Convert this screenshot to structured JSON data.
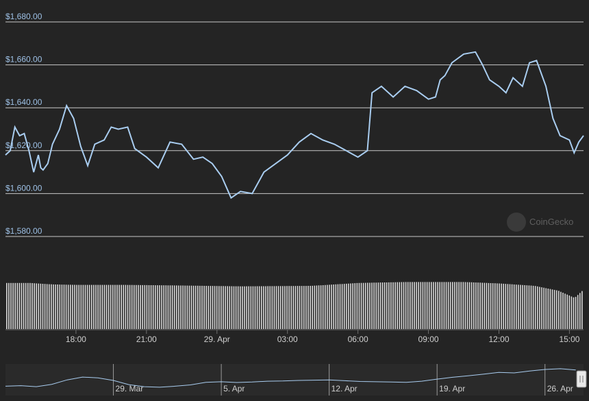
{
  "watermark": "CoinGecko",
  "colors": {
    "background": "#242424",
    "line": "#a9cdf0",
    "grid": "#c8c8c8",
    "volume": "#d9d9d9",
    "navigator_line": "#a9cdf0"
  },
  "chart_data": {
    "type": "line",
    "y_axis": {
      "min": 1580,
      "max": 1680,
      "ticks": [
        "$1,680.00",
        "$1,660.00",
        "$1,640.00",
        "$1,620.00",
        "$1,600.00",
        "$1,580.00"
      ],
      "tick_values": [
        1680,
        1660,
        1640,
        1620,
        1600,
        1580
      ]
    },
    "x_axis": {
      "ticks": [
        "18:00",
        "21:00",
        "29. Apr",
        "03:00",
        "06:00",
        "09:00",
        "12:00",
        "15:00"
      ],
      "tick_hours": [
        3,
        6,
        9,
        12,
        15,
        18,
        21,
        24
      ],
      "range_hours": [
        0,
        24.6
      ]
    },
    "price": {
      "x_hours": [
        0.0,
        0.2,
        0.4,
        0.6,
        0.8,
        1.0,
        1.2,
        1.4,
        1.5,
        1.6,
        1.8,
        2.0,
        2.3,
        2.6,
        2.9,
        3.2,
        3.5,
        3.8,
        4.2,
        4.5,
        4.8,
        5.2,
        5.5,
        6.0,
        6.5,
        7.0,
        7.5,
        8.0,
        8.4,
        8.8,
        9.2,
        9.6,
        10.0,
        10.5,
        11.0,
        11.5,
        12.0,
        12.5,
        13.0,
        13.5,
        14.0,
        14.5,
        15.0,
        15.4,
        15.6,
        16.0,
        16.5,
        17.0,
        17.5,
        18.0,
        18.3,
        18.5,
        18.7,
        19.0,
        19.5,
        20.0,
        20.3,
        20.6,
        21.0,
        21.3,
        21.6,
        22.0,
        22.3,
        22.6,
        23.0,
        23.3,
        23.6,
        24.0,
        24.2,
        24.4,
        24.6
      ],
      "values": [
        1618,
        1620,
        1631,
        1627,
        1628,
        1620,
        1610,
        1618,
        1612,
        1611,
        1614,
        1623,
        1630,
        1641,
        1635,
        1622,
        1613,
        1623,
        1625,
        1631,
        1630,
        1631,
        1621,
        1617,
        1612,
        1624,
        1623,
        1616,
        1617,
        1614,
        1608,
        1598,
        1601,
        1600,
        1610,
        1614,
        1618,
        1624,
        1628,
        1625,
        1623,
        1620,
        1617,
        1620,
        1647,
        1650,
        1645,
        1650,
        1648,
        1644,
        1645,
        1653,
        1655,
        1661,
        1665,
        1666,
        1660,
        1653,
        1650,
        1647,
        1654,
        1650,
        1661,
        1662,
        1650,
        1635,
        1627,
        1625,
        1619,
        1624,
        1627
      ]
    },
    "volume_series": [
      {
        "x": 0.0,
        "v": 0.96
      },
      {
        "x": 1.0,
        "v": 0.96
      },
      {
        "x": 2.0,
        "v": 0.93
      },
      {
        "x": 3.0,
        "v": 0.92
      },
      {
        "x": 5.0,
        "v": 0.92
      },
      {
        "x": 7.0,
        "v": 0.91
      },
      {
        "x": 10.0,
        "v": 0.89
      },
      {
        "x": 13.0,
        "v": 0.9
      },
      {
        "x": 15.0,
        "v": 0.96
      },
      {
        "x": 17.0,
        "v": 0.98
      },
      {
        "x": 19.5,
        "v": 0.98
      },
      {
        "x": 21.0,
        "v": 0.95
      },
      {
        "x": 22.5,
        "v": 0.9
      },
      {
        "x": 23.5,
        "v": 0.8
      },
      {
        "x": 24.2,
        "v": 0.65
      },
      {
        "x": 24.6,
        "v": 0.83
      }
    ],
    "navigator": {
      "ticks": [
        "29. Mar",
        "5. Apr",
        "12. Apr",
        "19. Apr",
        "26. Apr"
      ],
      "tick_days": [
        7,
        14,
        21,
        28,
        35
      ],
      "range_days": [
        0,
        37.5
      ],
      "values": [
        0.28,
        0.3,
        0.26,
        0.35,
        0.52,
        0.63,
        0.6,
        0.5,
        0.34,
        0.26,
        0.24,
        0.28,
        0.33,
        0.43,
        0.45,
        0.42,
        0.44,
        0.47,
        0.48,
        0.5,
        0.51,
        0.52,
        0.49,
        0.46,
        0.45,
        0.44,
        0.43,
        0.47,
        0.55,
        0.62,
        0.68,
        0.74,
        0.81,
        0.79,
        0.86,
        0.92,
        0.95,
        0.9
      ],
      "x_days": [
        0,
        1,
        2,
        3,
        4,
        5,
        6,
        7,
        8,
        9,
        10,
        11,
        12,
        13,
        14,
        15,
        16,
        17,
        18,
        19,
        20,
        21,
        22,
        23,
        24,
        25,
        26,
        27,
        28,
        29,
        30,
        31,
        32,
        33,
        34,
        35,
        36,
        37
      ]
    }
  }
}
